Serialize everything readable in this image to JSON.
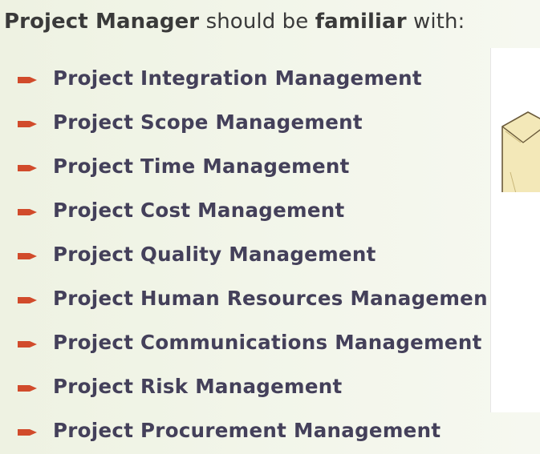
{
  "heading": {
    "prefix": "Project Manager",
    "middle": " should be ",
    "emphasis": "familiar",
    "suffix": " with:"
  },
  "bullets": [
    "Project Integration Management",
    "Project Scope Management",
    "Project Time Management",
    "Project Cost Management",
    "Project Quality Management",
    "Project Human Resources Managemen",
    "Project Communications Management",
    "Project Risk Management",
    "Project Procurement Management"
  ],
  "colors": {
    "bullet_icon": "#d14b2b",
    "bullet_text": "#44405a",
    "heading_text": "#3a3a3a",
    "background": "#f1f4e6"
  },
  "icons": {
    "bullet": "arrow-bullet-icon",
    "picture": "envelope-icon"
  }
}
